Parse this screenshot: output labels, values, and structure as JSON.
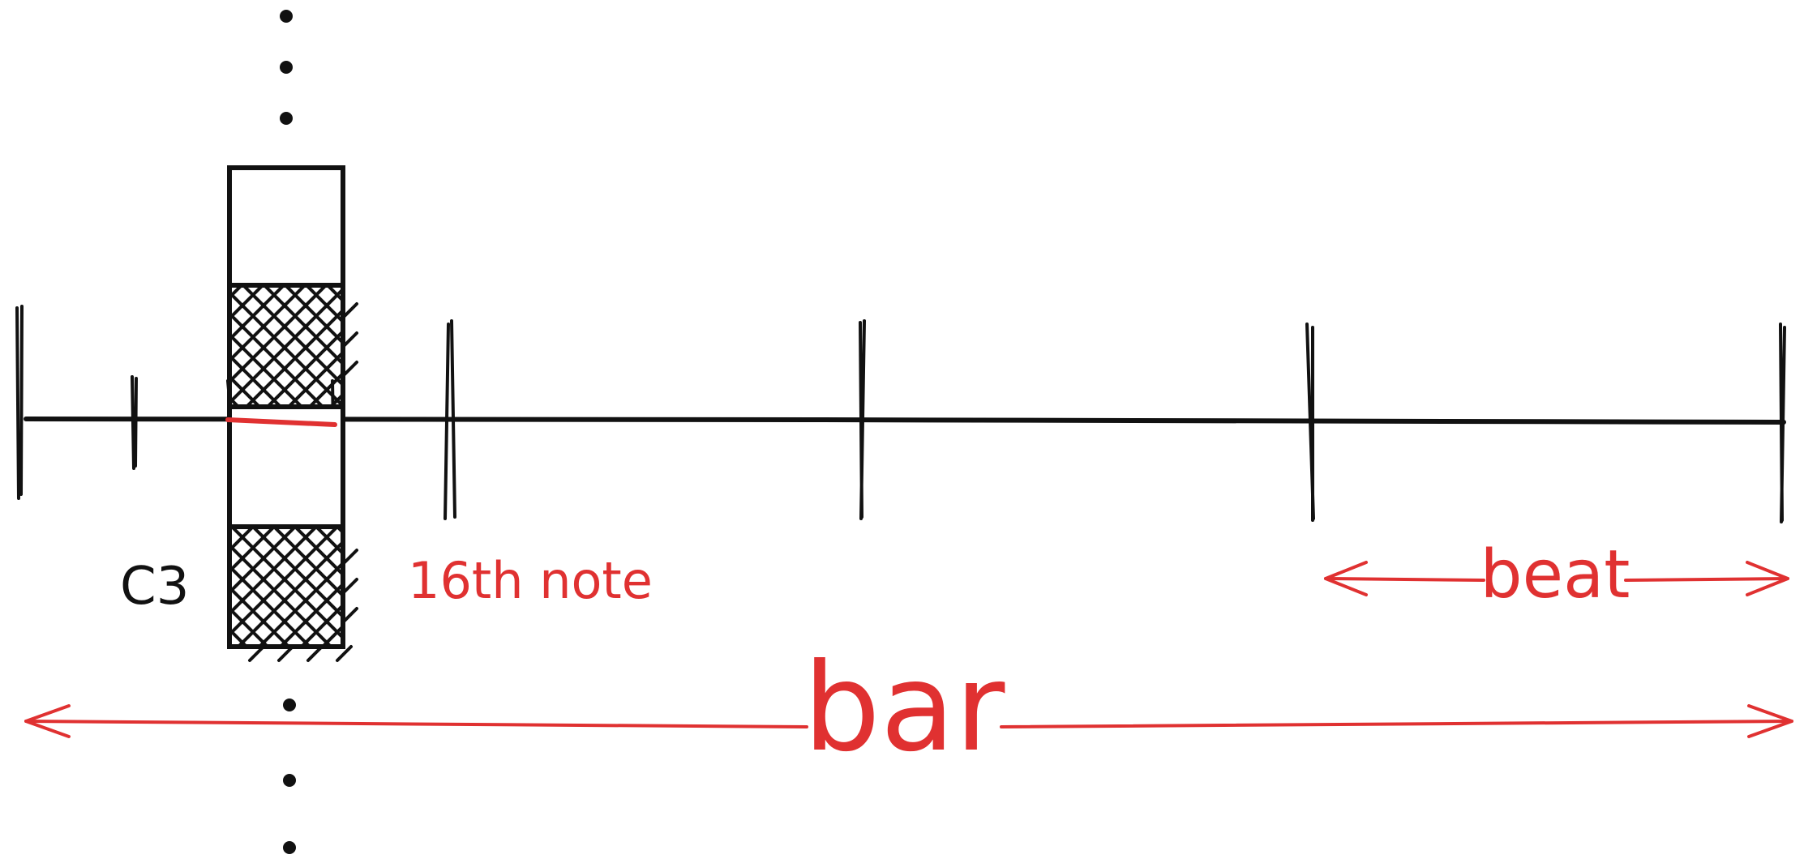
{
  "labels": {
    "pitch": "C3",
    "note_length": "16th note",
    "beat": "beat",
    "bar": "bar"
  },
  "colors": {
    "ink": "#111111",
    "accent": "#e03131",
    "background": "#ffffff"
  }
}
